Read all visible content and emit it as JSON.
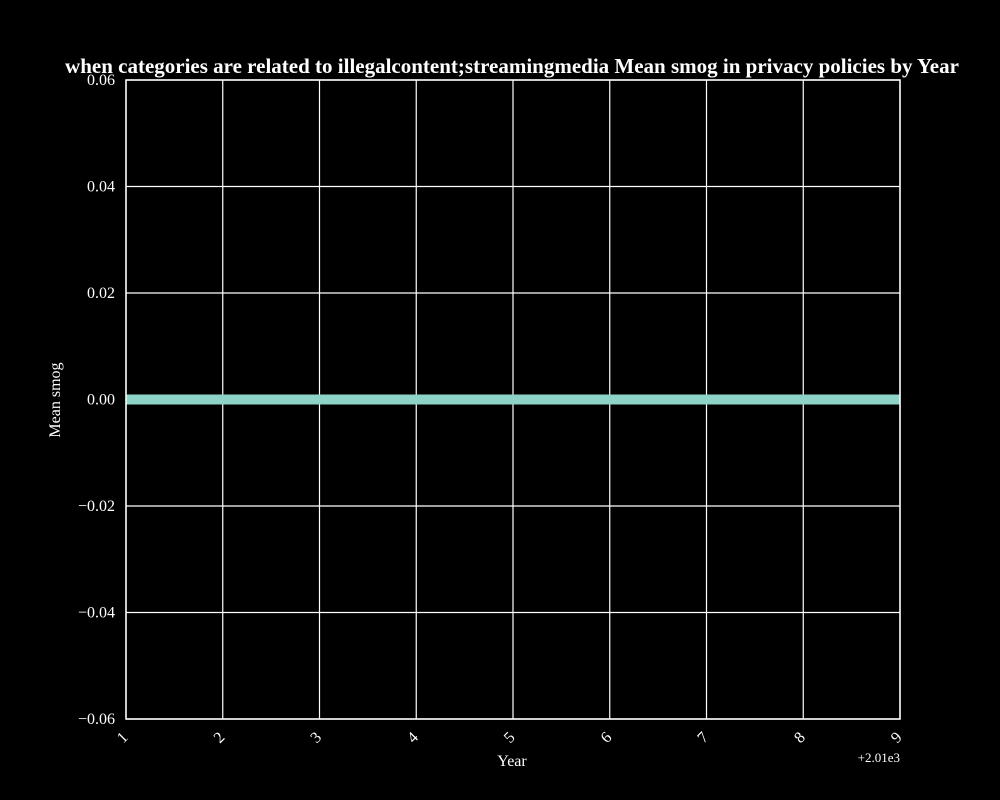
{
  "chart_data": {
    "type": "line",
    "title": "when categories are related to illegalcontent;streamingmedia Mean smog in privacy policies by Year",
    "xlabel": "Year",
    "ylabel": "Mean smog",
    "x_offset_label": "+2.01e3",
    "xlim": [
      1,
      9
    ],
    "ylim": [
      -0.06,
      0.06
    ],
    "x_ticks": [
      1,
      2,
      3,
      4,
      5,
      6,
      7,
      8,
      9
    ],
    "x_tick_labels": [
      "1",
      "2",
      "3",
      "4",
      "5",
      "6",
      "7",
      "8",
      "9"
    ],
    "y_ticks": [
      0.06,
      0.04,
      0.02,
      0.0,
      -0.02,
      -0.04,
      -0.06
    ],
    "y_tick_labels": [
      "0.06",
      "0.04",
      "0.02",
      "0.00",
      "−0.02",
      "−0.04",
      "−0.06"
    ],
    "grid": true,
    "background": "#000000",
    "series": [
      {
        "color": "#8dd3c7",
        "x": [
          1,
          2,
          3,
          4,
          5,
          6,
          7,
          8,
          9
        ],
        "y": [
          0,
          0,
          0,
          0,
          0,
          0,
          0,
          0,
          0
        ]
      }
    ]
  }
}
